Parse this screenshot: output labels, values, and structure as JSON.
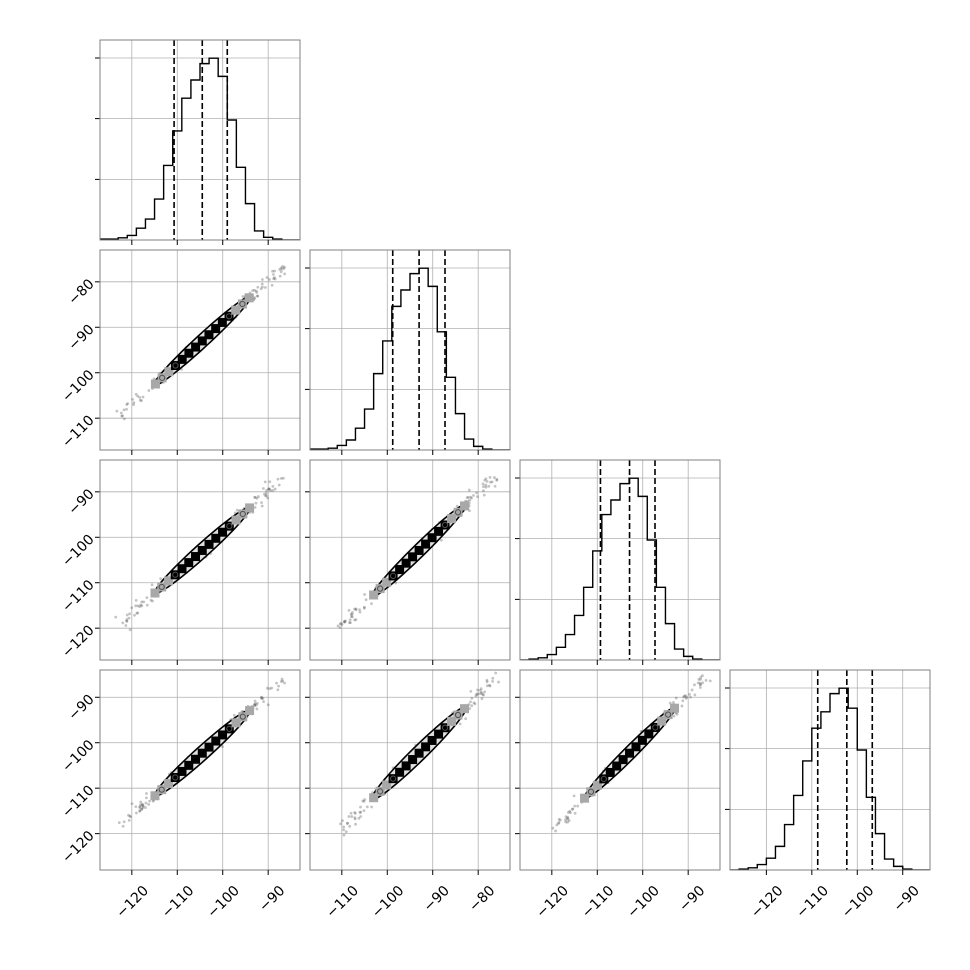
{
  "colors": {
    "frame": "#808080",
    "grid": "#b0b0b0",
    "line": "#000000",
    "contour_fill": "#e0e0e0",
    "density_dark": "#000000",
    "density_mid": "#505050",
    "density_light": "#a8a8a8",
    "scatter": "#555555"
  },
  "chart_data": {
    "type": "corner",
    "grid": true,
    "n_params": 4,
    "params": [
      {
        "name": "",
        "range": [
          -127,
          -83
        ],
        "ticks": [
          -120,
          -110,
          -100,
          -90
        ],
        "tick_labels": [
          "−120",
          "−110",
          "−100",
          "−90"
        ],
        "quantiles": [
          -110.7,
          -104.5,
          -99.0
        ],
        "hist_edges": [
          -127,
          -125,
          -123,
          -121,
          -119,
          -117,
          -115,
          -113,
          -111,
          -109,
          -107,
          -105,
          -103,
          -101,
          -99,
          -97,
          -95,
          -93,
          -91,
          -89,
          -87,
          -85,
          -83
        ],
        "hist_counts": [
          0.005,
          0.005,
          0.012,
          0.025,
          0.065,
          0.115,
          0.225,
          0.41,
          0.6,
          0.78,
          0.88,
          0.97,
          1.0,
          0.9,
          0.66,
          0.4,
          0.2,
          0.05,
          0.015,
          0.005,
          0.0,
          0.0
        ]
      },
      {
        "name": "",
        "range": [
          -117,
          -73
        ],
        "ticks": [
          -110,
          -100,
          -90,
          -80
        ],
        "tick_labels": [
          "−110",
          "−100",
          "−90",
          "−80"
        ],
        "quantiles": [
          -98.8,
          -93.0,
          -87.3
        ],
        "hist_edges": [
          -117,
          -115,
          -113,
          -111,
          -109,
          -107,
          -105,
          -103,
          -101,
          -99,
          -97,
          -95,
          -93,
          -91,
          -89,
          -87,
          -85,
          -83,
          -81,
          -79,
          -77,
          -75,
          -73
        ],
        "hist_counts": [
          0.005,
          0.005,
          0.01,
          0.025,
          0.055,
          0.12,
          0.225,
          0.42,
          0.6,
          0.79,
          0.88,
          0.97,
          1.0,
          0.9,
          0.65,
          0.4,
          0.2,
          0.06,
          0.02,
          0.005,
          0.0,
          0.0
        ]
      },
      {
        "name": "",
        "range": [
          -127,
          -83
        ],
        "ticks": [
          -120,
          -110,
          -100,
          -90
        ],
        "tick_labels": [
          "−120",
          "−110",
          "−100",
          "−90"
        ],
        "quantiles": [
          -109.3,
          -102.9,
          -97.3
        ],
        "hist_edges": [
          -127,
          -125,
          -123,
          -121,
          -119,
          -117,
          -115,
          -113,
          -111,
          -109,
          -107,
          -105,
          -103,
          -101,
          -99,
          -97,
          -95,
          -93,
          -91,
          -89,
          -87,
          -85,
          -83
        ],
        "hist_counts": [
          0.0,
          0.005,
          0.012,
          0.03,
          0.07,
          0.14,
          0.245,
          0.4,
          0.6,
          0.8,
          0.88,
          0.97,
          1.0,
          0.9,
          0.66,
          0.4,
          0.2,
          0.06,
          0.02,
          0.005,
          0.0,
          0.0
        ]
      },
      {
        "name": "",
        "range": [
          -128,
          -84
        ],
        "ticks": [
          -120,
          -110,
          -100,
          -90
        ],
        "tick_labels": [
          "−120",
          "−110",
          "−100",
          "−90"
        ],
        "quantiles": [
          -108.7,
          -102.3,
          -96.7
        ],
        "hist_edges": [
          -128,
          -126,
          -124,
          -122,
          -120,
          -118,
          -116,
          -114,
          -112,
          -110,
          -108,
          -106,
          -104,
          -102,
          -100,
          -98,
          -96,
          -94,
          -92,
          -90,
          -88,
          -86,
          -84
        ],
        "hist_counts": [
          0.0,
          0.005,
          0.012,
          0.03,
          0.065,
          0.13,
          0.25,
          0.41,
          0.6,
          0.78,
          0.87,
          0.97,
          1.0,
          0.89,
          0.66,
          0.4,
          0.2,
          0.06,
          0.02,
          0.005,
          0.0,
          0.0
        ]
      }
    ],
    "pair_contours": [
      {
        "row": 1,
        "col": 0,
        "center": [
          -104.5,
          -93.0
        ],
        "slope": 0.92,
        "half_length": 14.5,
        "half_width": 1.4,
        "dark_len": 4,
        "mid_len": 7
      },
      {
        "row": 2,
        "col": 0,
        "center": [
          -104.5,
          -102.9
        ],
        "slope": 0.9,
        "half_length": 14.0,
        "half_width": 1.5,
        "dark_len": 4,
        "mid_len": 7
      },
      {
        "row": 2,
        "col": 1,
        "center": [
          -93.0,
          -102.9
        ],
        "slope": 0.98,
        "half_length": 14.5,
        "half_width": 1.4,
        "dark_len": 4,
        "mid_len": 7
      },
      {
        "row": 3,
        "col": 0,
        "center": [
          -104.5,
          -102.3
        ],
        "slope": 0.9,
        "half_length": 14.0,
        "half_width": 1.5,
        "dark_len": 4,
        "mid_len": 7
      },
      {
        "row": 3,
        "col": 1,
        "center": [
          -93.0,
          -102.3
        ],
        "slope": 0.98,
        "half_length": 14.5,
        "half_width": 1.6,
        "dark_len": 4,
        "mid_len": 7
      },
      {
        "row": 3,
        "col": 2,
        "center": [
          -102.9,
          -102.3
        ],
        "slope": 1.0,
        "half_length": 14.0,
        "half_width": 1.4,
        "dark_len": 4,
        "mid_len": 7
      }
    ]
  }
}
